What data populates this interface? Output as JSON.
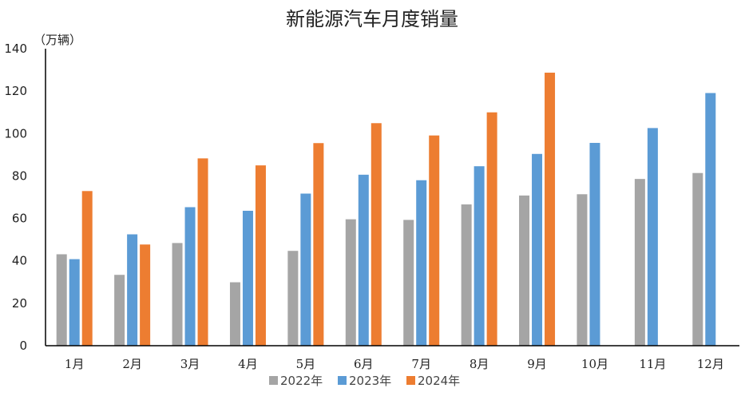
{
  "chart_data": {
    "type": "bar",
    "title": "新能源汽车月度销量",
    "unit_label": "（万辆）",
    "categories": [
      "1月",
      "2月",
      "3月",
      "4月",
      "5月",
      "6月",
      "7月",
      "8月",
      "9月",
      "10月",
      "11月",
      "12月"
    ],
    "ylim": [
      0,
      140
    ],
    "yticks": [
      0,
      20,
      40,
      60,
      80,
      100,
      120,
      140
    ],
    "grid": false,
    "legend_position": "bottom",
    "series": [
      {
        "name": "2022年",
        "color": "#a5a5a5",
        "values": [
          43.1,
          33.4,
          48.4,
          29.9,
          44.7,
          59.6,
          59.3,
          66.6,
          70.8,
          71.4,
          78.6,
          81.4
        ]
      },
      {
        "name": "2023年",
        "color": "#5b9bd5",
        "values": [
          40.8,
          52.5,
          65.3,
          63.6,
          71.7,
          80.6,
          78.0,
          84.6,
          90.4,
          95.6,
          102.6,
          119.1
        ]
      },
      {
        "name": "2024年",
        "color": "#ed7d31",
        "values": [
          72.9,
          47.7,
          88.3,
          85.0,
          95.5,
          104.9,
          99.1,
          110.0,
          128.7,
          null,
          null,
          null
        ]
      }
    ]
  }
}
